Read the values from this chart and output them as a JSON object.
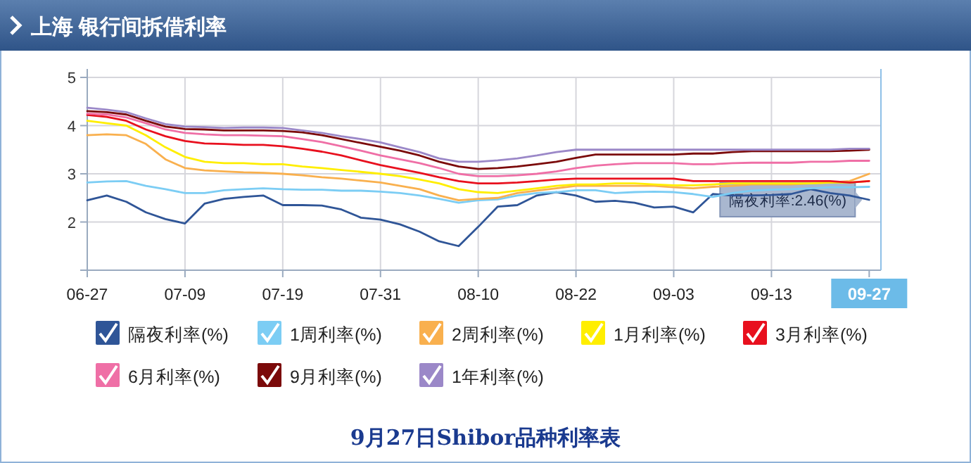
{
  "chart_data": {
    "type": "line",
    "title": "上海  银行间拆借利率",
    "categories": [
      "06-27",
      null,
      null,
      null,
      null,
      "07-09",
      null,
      null,
      null,
      null,
      "07-19",
      null,
      null,
      null,
      null,
      "07-31",
      null,
      null,
      null,
      null,
      "08-10",
      null,
      null,
      null,
      null,
      "08-22",
      null,
      null,
      null,
      null,
      "09-03",
      null,
      null,
      null,
      null,
      "09-13",
      null,
      null,
      null,
      null,
      "09-27"
    ],
    "series": [
      {
        "name": "隔夜利率(%)",
        "color": "#2f5597",
        "values": [
          2.45,
          2.55,
          2.42,
          2.2,
          2.06,
          1.97,
          2.38,
          2.48,
          2.52,
          2.55,
          2.35,
          2.35,
          2.34,
          2.26,
          2.09,
          2.05,
          1.95,
          1.8,
          1.6,
          1.5,
          1.9,
          2.32,
          2.35,
          2.55,
          2.62,
          2.55,
          2.42,
          2.44,
          2.4,
          2.3,
          2.32,
          2.2,
          2.58,
          2.55,
          2.55,
          2.56,
          2.58,
          2.68,
          2.6,
          2.55,
          2.46
        ]
      },
      {
        "name": "1周利率(%)",
        "color": "#7ccdf4",
        "values": [
          2.82,
          2.84,
          2.85,
          2.75,
          2.68,
          2.6,
          2.6,
          2.66,
          2.68,
          2.7,
          2.68,
          2.67,
          2.67,
          2.65,
          2.65,
          2.63,
          2.6,
          2.55,
          2.48,
          2.4,
          2.45,
          2.47,
          2.55,
          2.6,
          2.62,
          2.66,
          2.66,
          2.6,
          2.62,
          2.63,
          2.62,
          2.58,
          2.52,
          2.6,
          2.65,
          2.67,
          2.68,
          2.7,
          2.72,
          2.72,
          2.73
        ]
      },
      {
        "name": "2周利率(%)",
        "color": "#f9b04e",
        "values": [
          3.8,
          3.82,
          3.8,
          3.62,
          3.3,
          3.12,
          3.07,
          3.05,
          3.03,
          3.02,
          3.0,
          2.97,
          2.93,
          2.9,
          2.86,
          2.82,
          2.75,
          2.68,
          2.55,
          2.45,
          2.48,
          2.5,
          2.6,
          2.65,
          2.7,
          2.75,
          2.75,
          2.75,
          2.75,
          2.75,
          2.72,
          2.7,
          2.73,
          2.75,
          2.78,
          2.78,
          2.78,
          2.8,
          2.82,
          2.85,
          3.0
        ]
      },
      {
        "name": "1月利率(%)",
        "color": "#ffee00",
        "values": [
          4.1,
          4.05,
          4.0,
          3.8,
          3.55,
          3.35,
          3.25,
          3.22,
          3.22,
          3.2,
          3.2,
          3.15,
          3.12,
          3.08,
          3.04,
          3.0,
          2.95,
          2.88,
          2.8,
          2.68,
          2.62,
          2.6,
          2.65,
          2.7,
          2.75,
          2.78,
          2.78,
          2.8,
          2.8,
          2.78,
          2.76,
          2.76,
          2.78,
          2.8,
          2.8,
          2.8,
          2.8,
          2.8,
          2.82,
          2.82,
          2.85
        ]
      },
      {
        "name": "3月利率(%)",
        "color": "#e8101e",
        "values": [
          4.22,
          4.18,
          4.1,
          3.92,
          3.78,
          3.68,
          3.63,
          3.62,
          3.6,
          3.6,
          3.57,
          3.52,
          3.46,
          3.38,
          3.28,
          3.18,
          3.1,
          3.02,
          2.93,
          2.85,
          2.8,
          2.8,
          2.82,
          2.85,
          2.88,
          2.9,
          2.9,
          2.9,
          2.9,
          2.9,
          2.9,
          2.85,
          2.85,
          2.85,
          2.85,
          2.85,
          2.85,
          2.85,
          2.85,
          2.82,
          2.85
        ]
      },
      {
        "name": "6月利率(%)",
        "color": "#ef6fa6",
        "values": [
          4.25,
          4.23,
          4.17,
          4.05,
          3.92,
          3.85,
          3.82,
          3.8,
          3.8,
          3.79,
          3.78,
          3.72,
          3.66,
          3.57,
          3.48,
          3.38,
          3.3,
          3.22,
          3.12,
          3.0,
          2.95,
          2.95,
          2.97,
          3.0,
          3.05,
          3.12,
          3.17,
          3.2,
          3.22,
          3.22,
          3.22,
          3.2,
          3.2,
          3.22,
          3.23,
          3.23,
          3.23,
          3.25,
          3.25,
          3.27,
          3.27
        ]
      },
      {
        "name": "9月利率(%)",
        "color": "#7b0a0a",
        "values": [
          4.3,
          4.28,
          4.23,
          4.1,
          3.98,
          3.93,
          3.92,
          3.9,
          3.9,
          3.9,
          3.89,
          3.86,
          3.8,
          3.72,
          3.64,
          3.56,
          3.48,
          3.38,
          3.25,
          3.15,
          3.1,
          3.12,
          3.15,
          3.2,
          3.25,
          3.33,
          3.4,
          3.4,
          3.4,
          3.4,
          3.4,
          3.42,
          3.42,
          3.45,
          3.47,
          3.47,
          3.47,
          3.47,
          3.47,
          3.48,
          3.5
        ]
      },
      {
        "name": "1年利率(%)",
        "color": "#9b88c8",
        "values": [
          4.37,
          4.33,
          4.28,
          4.15,
          4.03,
          3.98,
          3.97,
          3.95,
          3.96,
          3.96,
          3.95,
          3.9,
          3.85,
          3.78,
          3.72,
          3.65,
          3.55,
          3.45,
          3.32,
          3.25,
          3.25,
          3.28,
          3.32,
          3.38,
          3.45,
          3.5,
          3.5,
          3.5,
          3.5,
          3.5,
          3.5,
          3.5,
          3.5,
          3.5,
          3.5,
          3.5,
          3.5,
          3.5,
          3.5,
          3.52,
          3.52
        ]
      }
    ],
    "ylim": [
      1,
      5
    ],
    "yticks": [
      {
        "value": 1,
        "label": null
      },
      2,
      3,
      4,
      5
    ],
    "grid": true,
    "legend": "bottom",
    "annotations": [
      {
        "text": "隔夜利率:2.46(%)",
        "x": "09-27",
        "y": 2.46
      },
      "9月27日Shibor品种利率表"
    ]
  }
}
